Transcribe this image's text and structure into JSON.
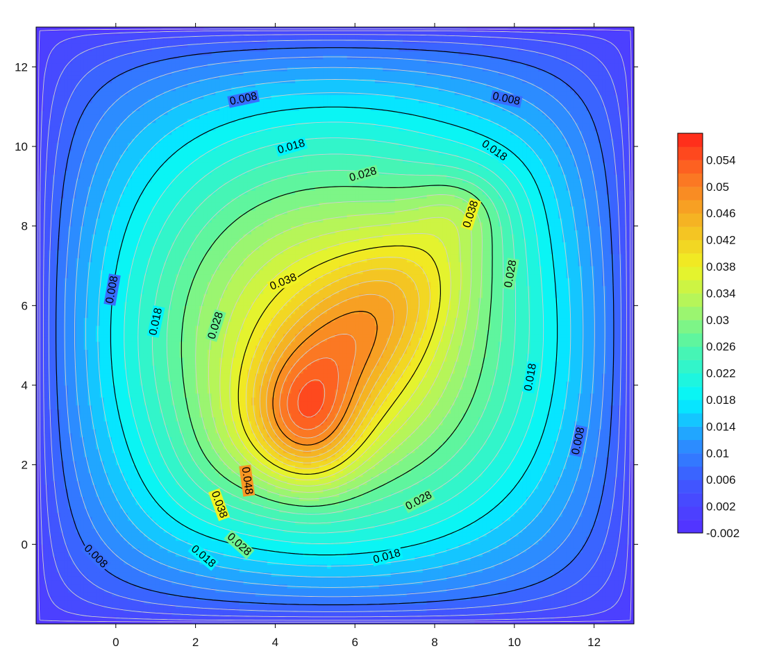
{
  "chart_data": {
    "type": "heatmap",
    "subtype": "filled-contour",
    "title": "",
    "xlabel": "",
    "ylabel": "",
    "xlim": [
      -2,
      13
    ],
    "ylim": [
      -2,
      13
    ],
    "x_ticks": [
      0,
      2,
      4,
      6,
      8,
      10,
      12
    ],
    "y_ticks": [
      0,
      2,
      4,
      6,
      8,
      10,
      12
    ],
    "x_tick_labels": [
      "0",
      "2",
      "4",
      "6",
      "8",
      "10",
      "12"
    ],
    "y_tick_labels": [
      "0",
      "2",
      "4",
      "6",
      "8",
      "10",
      "12"
    ],
    "grid": false,
    "z_min": -0.002,
    "z_max": 0.058,
    "peak": {
      "x": 4.85,
      "y": 2.95,
      "value": 0.056
    },
    "ridge": [
      {
        "x": 4.8,
        "y": 2.9
      },
      {
        "x": 5.6,
        "y": 4.9
      },
      {
        "x": 7.2,
        "y": 6.8
      },
      {
        "x": 8.6,
        "y": 8.5
      }
    ],
    "contour_levels": [
      -0.002,
      0.0,
      0.002,
      0.004,
      0.006,
      0.008,
      0.01,
      0.012,
      0.014,
      0.016,
      0.018,
      0.02,
      0.022,
      0.024,
      0.026,
      0.028,
      0.03,
      0.032,
      0.034,
      0.036,
      0.038,
      0.04,
      0.042,
      0.044,
      0.046,
      0.048,
      0.05,
      0.052,
      0.054,
      0.056
    ],
    "labeled_contours": [
      {
        "level": 0.008,
        "labels": [
          "0.008",
          "0.008",
          "0.008",
          "0.008",
          "0.008"
        ]
      },
      {
        "level": 0.018,
        "labels": [
          "0.018",
          "0.018",
          "0.018",
          "0.018",
          "0.018",
          "0.018"
        ]
      },
      {
        "level": 0.028,
        "labels": [
          "0.028",
          "0.028",
          "0.028",
          "0.028",
          "0.028",
          "0.028"
        ]
      },
      {
        "level": 0.038,
        "labels": [
          "0.038",
          "0.038",
          "0.038"
        ]
      },
      {
        "level": 0.048,
        "labels": [
          "0.048"
        ]
      }
    ],
    "colorbar": {
      "tick_labels": [
        "0.054",
        "0.05",
        "0.046",
        "0.042",
        "0.038",
        "0.034",
        "0.03",
        "0.026",
        "0.022",
        "0.018",
        "0.014",
        "0.01",
        "0.006",
        "0.002",
        "-0.002"
      ],
      "tick_values": [
        0.054,
        0.05,
        0.046,
        0.042,
        0.038,
        0.034,
        0.03,
        0.026,
        0.022,
        0.018,
        0.014,
        0.01,
        0.006,
        0.002,
        -0.002
      ]
    },
    "colors": {
      "low": "#5533ff",
      "mid_low": "#2e8bff",
      "mid": "#00f5ff",
      "mid_high": "#7dff8a",
      "high_mid": "#f2f21f",
      "high": "#f5a021",
      "max": "#ff2a1e",
      "major_contour": "#000000",
      "minor_contour": "#cfcfcf"
    }
  }
}
